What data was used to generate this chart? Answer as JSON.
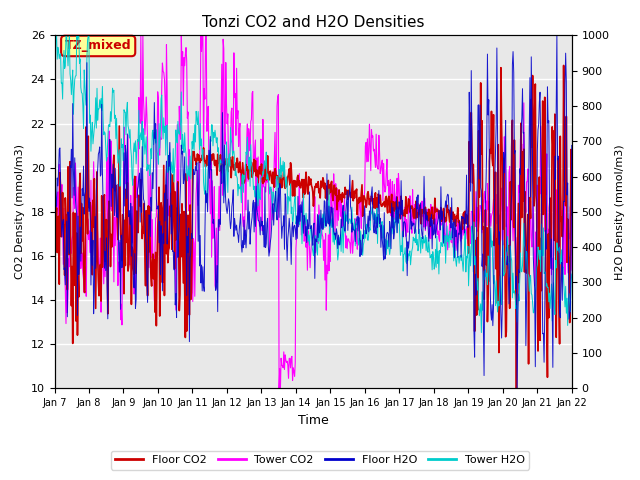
{
  "title": "Tonzi CO2 and H2O Densities",
  "xlabel": "Time",
  "ylabel_left": "CO2 Density (mmol/m3)",
  "ylabel_right": "H2O Density (mmol/m3)",
  "ylim_left": [
    10,
    26
  ],
  "ylim_right": [
    0,
    1000
  ],
  "annotation_text": "TZ_mixed",
  "annotation_color": "#cc0000",
  "annotation_bg": "#ffff99",
  "xtick_labels": [
    "Jan 7",
    "Jan 8",
    "Jan 9",
    "Jan 10",
    "Jan 11",
    "Jan 12",
    "Jan 13",
    "Jan 14",
    "Jan 15",
    "Jan 16",
    "Jan 17",
    "Jan 18",
    "Jan 19",
    "Jan 20",
    "Jan 21",
    "Jan 22"
  ],
  "legend_labels": [
    "Floor CO2",
    "Tower CO2",
    "Floor H2O",
    "Tower H2O"
  ],
  "legend_colors": [
    "#cc0000",
    "#ff00ff",
    "#0000cc",
    "#00cccc"
  ],
  "floor_co2_color": "#cc0000",
  "tower_co2_color": "#ff00ff",
  "floor_h2o_color": "#0000cc",
  "tower_h2o_color": "#00cccc",
  "plot_bg_color": "#e8e8e8",
  "grid_color": "#ffffff"
}
